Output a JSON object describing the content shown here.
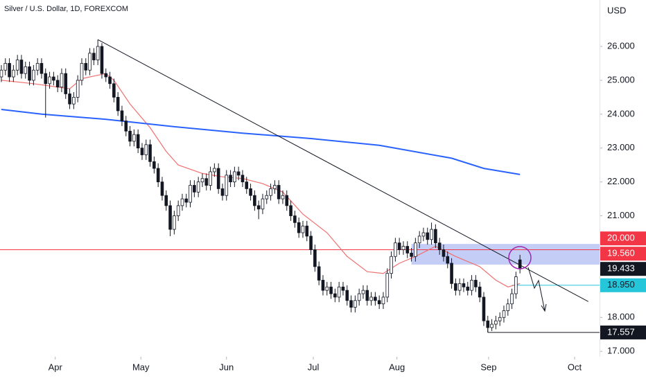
{
  "chart_data": {
    "type": "candlestick",
    "title": "Silver / U.S. Dollar, 1D, FOREXCOM",
    "y_axis_label": "USD",
    "up_color": "#ffffff",
    "down_color": "#131722",
    "outline_color": "#131722",
    "xlim": [
      -0.34,
      148.8
    ],
    "ylim": [
      16.84,
      27.37
    ],
    "xticks": [
      {
        "value": 13.4,
        "label": "Apr"
      },
      {
        "value": 34.7,
        "label": "May"
      },
      {
        "value": 56,
        "label": "Jun"
      },
      {
        "value": 77.6,
        "label": "Jul"
      },
      {
        "value": 98.4,
        "label": "Aug"
      },
      {
        "value": 121.2,
        "label": "Sep"
      },
      {
        "value": 142.6,
        "label": "Oct"
      }
    ],
    "yticks": [
      {
        "value": 26,
        "label": "26.000"
      },
      {
        "value": 25,
        "label": "25.000"
      },
      {
        "value": 24,
        "label": "24.000"
      },
      {
        "value": 23,
        "label": "23.000"
      },
      {
        "value": 22,
        "label": "22.000"
      },
      {
        "value": 21,
        "label": "21.000"
      },
      {
        "value": 18,
        "label": "18.000"
      },
      {
        "value": 17,
        "label": "17.000"
      }
    ],
    "open": [
      25.1,
      25.3,
      25.5,
      25.1,
      25.3,
      25.6,
      25.2,
      25.4,
      25.0,
      25.3,
      25.5,
      25.2,
      24.9,
      25.1,
      25.0,
      24.8,
      25.2,
      24.6,
      24.3,
      24.5,
      25.0,
      25.5,
      25.3,
      25.8,
      25.6,
      26.0,
      25.2,
      25.1,
      24.9,
      24.5,
      24.1,
      23.8,
      23.5,
      23.2,
      23.4,
      23.0,
      22.8,
      23.1,
      22.6,
      22.4,
      22.0,
      21.6,
      21.3,
      20.6,
      21.0,
      21.3,
      21.5,
      21.4,
      21.9,
      21.7,
      22.0,
      22.1,
      21.9,
      22.3,
      22.4,
      21.8,
      21.6,
      22.2,
      22.0,
      22.3,
      22.2,
      22.0,
      21.8,
      21.6,
      21.3,
      21.2,
      21.5,
      21.6,
      21.8,
      21.9,
      21.5,
      21.6,
      21.3,
      21.0,
      20.8,
      20.5,
      20.7,
      20.4,
      20.0,
      19.5,
      19.1,
      18.8,
      18.9,
      18.7,
      18.6,
      18.9,
      18.8,
      18.5,
      18.3,
      18.5,
      18.7,
      18.8,
      18.5,
      18.6,
      18.5,
      18.4,
      18.6,
      19.3,
      19.8,
      20.2,
      20.0,
      20.1,
      19.9,
      19.8,
      20.2,
      20.4,
      20.5,
      20.3,
      20.6,
      20.2,
      20.0,
      19.8,
      19.6,
      19.0,
      18.8,
      19.0,
      18.9,
      18.8,
      19.1,
      18.9,
      18.6,
      17.9,
      17.7,
      17.8,
      17.9,
      18.0,
      18.2,
      18.4,
      18.7,
      19.7
    ],
    "high": [
      25.45,
      25.65,
      25.65,
      25.45,
      25.75,
      25.75,
      25.55,
      25.55,
      25.45,
      25.65,
      25.65,
      25.35,
      25.25,
      25.25,
      25.15,
      25.35,
      25.35,
      24.75,
      24.65,
      25.15,
      25.65,
      25.65,
      25.95,
      25.95,
      26.2,
      26.1,
      25.35,
      25.25,
      25.05,
      24.65,
      24.25,
      23.95,
      23.65,
      23.55,
      23.55,
      23.15,
      23.25,
      23.25,
      22.75,
      22.55,
      22.15,
      21.75,
      21.45,
      21.15,
      21.45,
      21.65,
      21.65,
      22.05,
      22.05,
      22.15,
      22.25,
      22.25,
      22.45,
      22.55,
      22.55,
      21.95,
      22.35,
      22.35,
      22.45,
      22.45,
      22.35,
      22.15,
      21.95,
      21.75,
      21.45,
      21.65,
      21.75,
      21.95,
      22.05,
      22.05,
      21.75,
      21.75,
      21.45,
      21.15,
      20.95,
      20.85,
      20.85,
      20.55,
      20.15,
      19.65,
      19.25,
      19.05,
      19.05,
      18.85,
      19.05,
      19.05,
      18.95,
      18.65,
      18.65,
      18.85,
      18.95,
      18.95,
      18.75,
      18.75,
      18.65,
      18.75,
      19.45,
      19.95,
      20.35,
      20.35,
      20.25,
      20.25,
      20.05,
      20.35,
      20.55,
      20.65,
      20.65,
      20.8,
      20.75,
      20.35,
      20.15,
      19.95,
      19.75,
      19.15,
      19.15,
      19.15,
      19.05,
      19.25,
      19.25,
      19.05,
      18.75,
      18.05,
      17.95,
      18.05,
      18.15,
      18.35,
      18.55,
      18.85,
      19.35,
      19.85
    ],
    "low": [
      24.95,
      25.15,
      24.95,
      24.95,
      25.15,
      25.05,
      25.05,
      24.85,
      24.85,
      25.15,
      25.05,
      23.9,
      24.75,
      24.85,
      24.65,
      24.65,
      24.45,
      24.15,
      24.15,
      24.35,
      24.85,
      25.15,
      25.15,
      25.45,
      25.45,
      25.05,
      24.95,
      24.75,
      24.35,
      23.95,
      23.65,
      23.35,
      23.05,
      23.05,
      22.85,
      22.65,
      22.65,
      22.45,
      22.25,
      21.85,
      21.45,
      21.15,
      20.4,
      20.45,
      20.85,
      21.15,
      21.25,
      21.25,
      21.55,
      21.55,
      21.85,
      21.75,
      21.75,
      22.15,
      21.65,
      21.45,
      21.45,
      21.85,
      21.85,
      22.05,
      21.85,
      21.65,
      21.45,
      21.15,
      20.9,
      21.05,
      21.35,
      21.45,
      21.65,
      21.35,
      21.35,
      21.15,
      20.85,
      20.65,
      20.35,
      20.35,
      20.25,
      19.85,
      19.35,
      18.95,
      18.65,
      18.65,
      18.55,
      18.45,
      18.45,
      18.65,
      18.35,
      18.15,
      18.15,
      18.35,
      18.55,
      18.35,
      18.35,
      18.35,
      18.25,
      18.25,
      18.45,
      19.15,
      19.65,
      19.85,
      19.85,
      19.75,
      19.65,
      19.65,
      20.05,
      20.25,
      20.15,
      20.15,
      20.05,
      19.85,
      19.65,
      19.45,
      18.85,
      18.65,
      18.65,
      18.75,
      18.65,
      18.65,
      18.75,
      18.45,
      17.75,
      17.557,
      17.6,
      17.65,
      17.75,
      17.85,
      18.05,
      18.25,
      18.55,
      19.3
    ],
    "close": [
      25.3,
      25.5,
      25.1,
      25.3,
      25.6,
      25.2,
      25.4,
      25.0,
      25.3,
      25.5,
      25.2,
      24.9,
      25.1,
      25.0,
      24.8,
      25.2,
      24.6,
      24.3,
      24.5,
      25.0,
      25.5,
      25.3,
      25.8,
      25.6,
      26.0,
      25.2,
      25.1,
      24.9,
      24.5,
      24.1,
      23.8,
      23.5,
      23.2,
      23.4,
      23.0,
      22.8,
      23.1,
      22.6,
      22.4,
      22.0,
      21.6,
      21.3,
      20.6,
      21.0,
      21.3,
      21.5,
      21.4,
      21.9,
      21.7,
      22.0,
      22.1,
      21.9,
      22.3,
      22.4,
      21.8,
      21.6,
      22.2,
      22.0,
      22.3,
      22.2,
      22.0,
      21.8,
      21.6,
      21.3,
      21.2,
      21.5,
      21.6,
      21.8,
      21.9,
      21.5,
      21.6,
      21.3,
      21.0,
      20.8,
      20.5,
      20.7,
      20.4,
      20.0,
      19.5,
      19.1,
      18.8,
      18.9,
      18.7,
      18.6,
      18.9,
      18.8,
      18.5,
      18.3,
      18.5,
      18.7,
      18.8,
      18.5,
      18.6,
      18.5,
      18.4,
      18.6,
      19.3,
      19.8,
      20.2,
      20.0,
      20.1,
      19.9,
      19.8,
      20.2,
      20.4,
      20.5,
      20.3,
      20.6,
      20.2,
      20.0,
      19.8,
      19.6,
      19.0,
      18.8,
      19.0,
      18.9,
      18.8,
      19.1,
      18.9,
      18.6,
      17.9,
      17.7,
      17.8,
      17.9,
      18.0,
      18.2,
      18.4,
      18.7,
      19.2,
      19.433
    ],
    "overlays": [
      {
        "color": "#f07070",
        "x": [
          0,
          8,
          17,
          20,
          26,
          28,
          32,
          37,
          41,
          44,
          50,
          55,
          60,
          65,
          70,
          75,
          81,
          86,
          91,
          95,
          99,
          103,
          108,
          113,
          119,
          123,
          126,
          129
        ],
        "values": [
          25.0,
          24.9,
          24.75,
          25.05,
          25.2,
          25.0,
          24.3,
          23.6,
          22.9,
          22.5,
          22.25,
          22.15,
          22.1,
          21.95,
          21.7,
          21.05,
          20.5,
          19.8,
          19.35,
          19.3,
          19.6,
          19.8,
          20.1,
          19.8,
          19.5,
          19.1,
          18.9,
          19.0
        ]
      },
      {
        "color": "#2962ff",
        "x": [
          0,
          10,
          26,
          43,
          60,
          77,
          94,
          112,
          120,
          129
        ],
        "values": [
          24.14,
          24.0,
          23.85,
          23.63,
          23.44,
          23.28,
          23.08,
          22.7,
          22.4,
          22.22
        ]
      }
    ],
    "trendline": {
      "color": "#131722",
      "x": [
        24,
        146
      ],
      "values": [
        26.2,
        18.47
      ]
    },
    "zone": {
      "from": 102,
      "range": [
        19.56,
        20.17
      ],
      "color": "#bcc8f5"
    },
    "price_levels": [
      {
        "value": 20.0,
        "label": "20.000",
        "color": "#f23645",
        "from": -0.34
      },
      {
        "value": 19.56,
        "label": "19.560",
        "color": "#f23645"
      },
      {
        "value": 19.433,
        "label": "19.433",
        "color": "#131722"
      },
      {
        "value": 18.95,
        "label": "18.950",
        "color": "#26c6da",
        "from": 127,
        "text_color": "#131722"
      },
      {
        "value": 17.557,
        "label": "17.557",
        "color": "#131722",
        "from": 121
      }
    ]
  }
}
